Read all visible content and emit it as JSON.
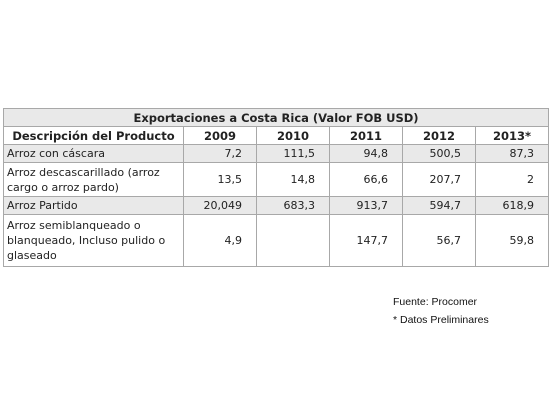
{
  "table": {
    "title": "Exportaciones a Costa Rica (Valor FOB USD)",
    "columns": [
      "Descripción del Producto",
      "2009",
      "2010",
      "2011",
      "2012",
      "2013*"
    ],
    "rows": [
      {
        "desc": "Arroz con cáscara",
        "values": [
          "7,2",
          "111,5",
          "94,8",
          "500,5",
          "87,3"
        ]
      },
      {
        "desc": "Arroz descascarillado (arroz cargo o arroz pardo)",
        "values": [
          "13,5",
          "14,8",
          "66,6",
          "207,7",
          "2"
        ]
      },
      {
        "desc": "Arroz Partido",
        "values": [
          "20,049",
          "683,3",
          "913,7",
          "594,7",
          "618,9"
        ]
      },
      {
        "desc": "Arroz semiblanqueado o blanqueado, Incluso pulido o glaseado",
        "values": [
          "4,9",
          "",
          "147,7",
          "56,7",
          "59,8"
        ]
      }
    ]
  },
  "notes": {
    "source": "Fuente: Procomer",
    "preliminary": "* Datos Preliminares"
  }
}
